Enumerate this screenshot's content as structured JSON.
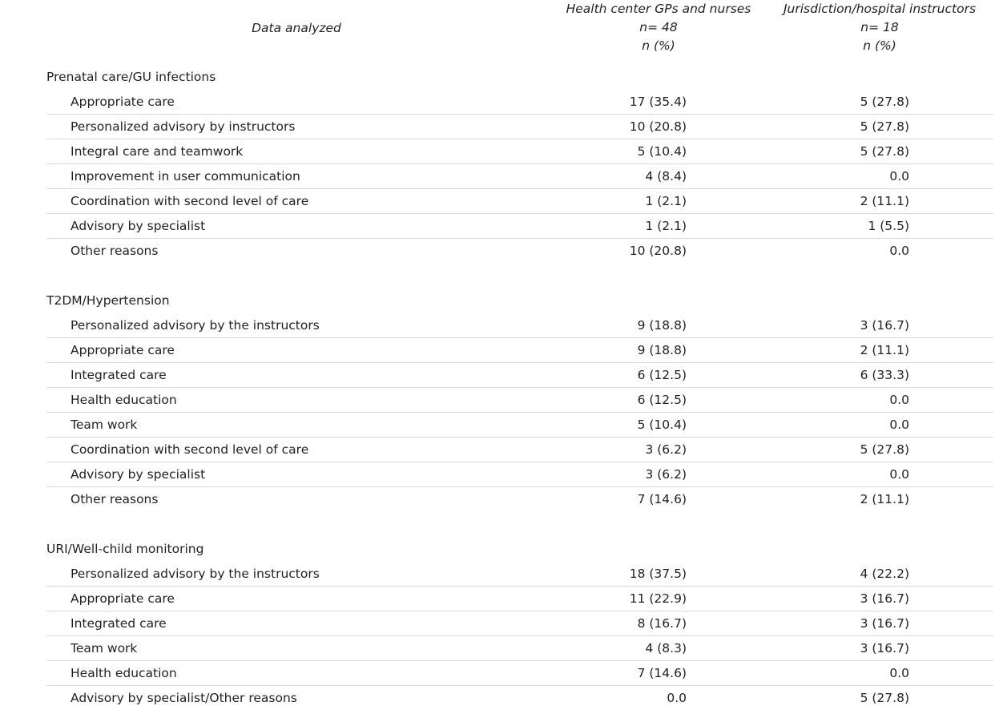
{
  "header": {
    "label": "Data analyzed",
    "columns": [
      {
        "lines": [
          "Health center GPs and nurses",
          "n= 48",
          "n (%)"
        ]
      },
      {
        "lines": [
          "Jurisdiction/hospital instructors",
          "n= 18",
          "n (%)"
        ]
      }
    ]
  },
  "sections": [
    {
      "title": "Prenatal care/GU infections",
      "rows": [
        [
          "Appropriate care",
          "17 (35.4)",
          "5 (27.8)"
        ],
        [
          "Personalized advisory by instructors",
          "10 (20.8)",
          "5 (27.8)"
        ],
        [
          "Integral care and teamwork",
          "5 (10.4)",
          "5 (27.8)"
        ],
        [
          "Improvement in user communication",
          "4 (8.4)",
          "0.0"
        ],
        [
          "Coordination with second level of care",
          "1 (2.1)",
          "2 (11.1)"
        ],
        [
          "Advisory by specialist",
          "1 (2.1)",
          "1 (5.5)"
        ],
        [
          "Other reasons",
          "10 (20.8)",
          "0.0"
        ]
      ]
    },
    {
      "title": "T2DM/Hypertension",
      "rows": [
        [
          "Personalized advisory by the instructors",
          "9 (18.8)",
          "3 (16.7)"
        ],
        [
          "Appropriate care",
          "9 (18.8)",
          "2 (11.1)"
        ],
        [
          "Integrated care",
          "6 (12.5)",
          "6 (33.3)"
        ],
        [
          "Health education",
          "6 (12.5)",
          "0.0"
        ],
        [
          "Team work",
          "5 (10.4)",
          "0.0"
        ],
        [
          "Coordination with second level of care",
          "3 (6.2)",
          "5 (27.8)"
        ],
        [
          "Advisory by specialist",
          "3 (6.2)",
          "0.0"
        ],
        [
          "Other reasons",
          "7 (14.6)",
          "2 (11.1)"
        ]
      ]
    },
    {
      "title": "URI/Well-child monitoring",
      "rows": [
        [
          "Personalized advisory by the instructors",
          "18 (37.5)",
          "4 (22.2)"
        ],
        [
          "Appropriate care",
          "11 (22.9)",
          "3 (16.7)"
        ],
        [
          "Integrated care",
          "8 (16.7)",
          "3 (16.7)"
        ],
        [
          "Team work",
          "4 (8.3)",
          "3 (16.7)"
        ],
        [
          "Health education",
          "7 (14.6)",
          "0.0"
        ],
        [
          "Advisory by specialist/Other reasons",
          "0.0",
          "5 (27.8)"
        ]
      ]
    }
  ]
}
